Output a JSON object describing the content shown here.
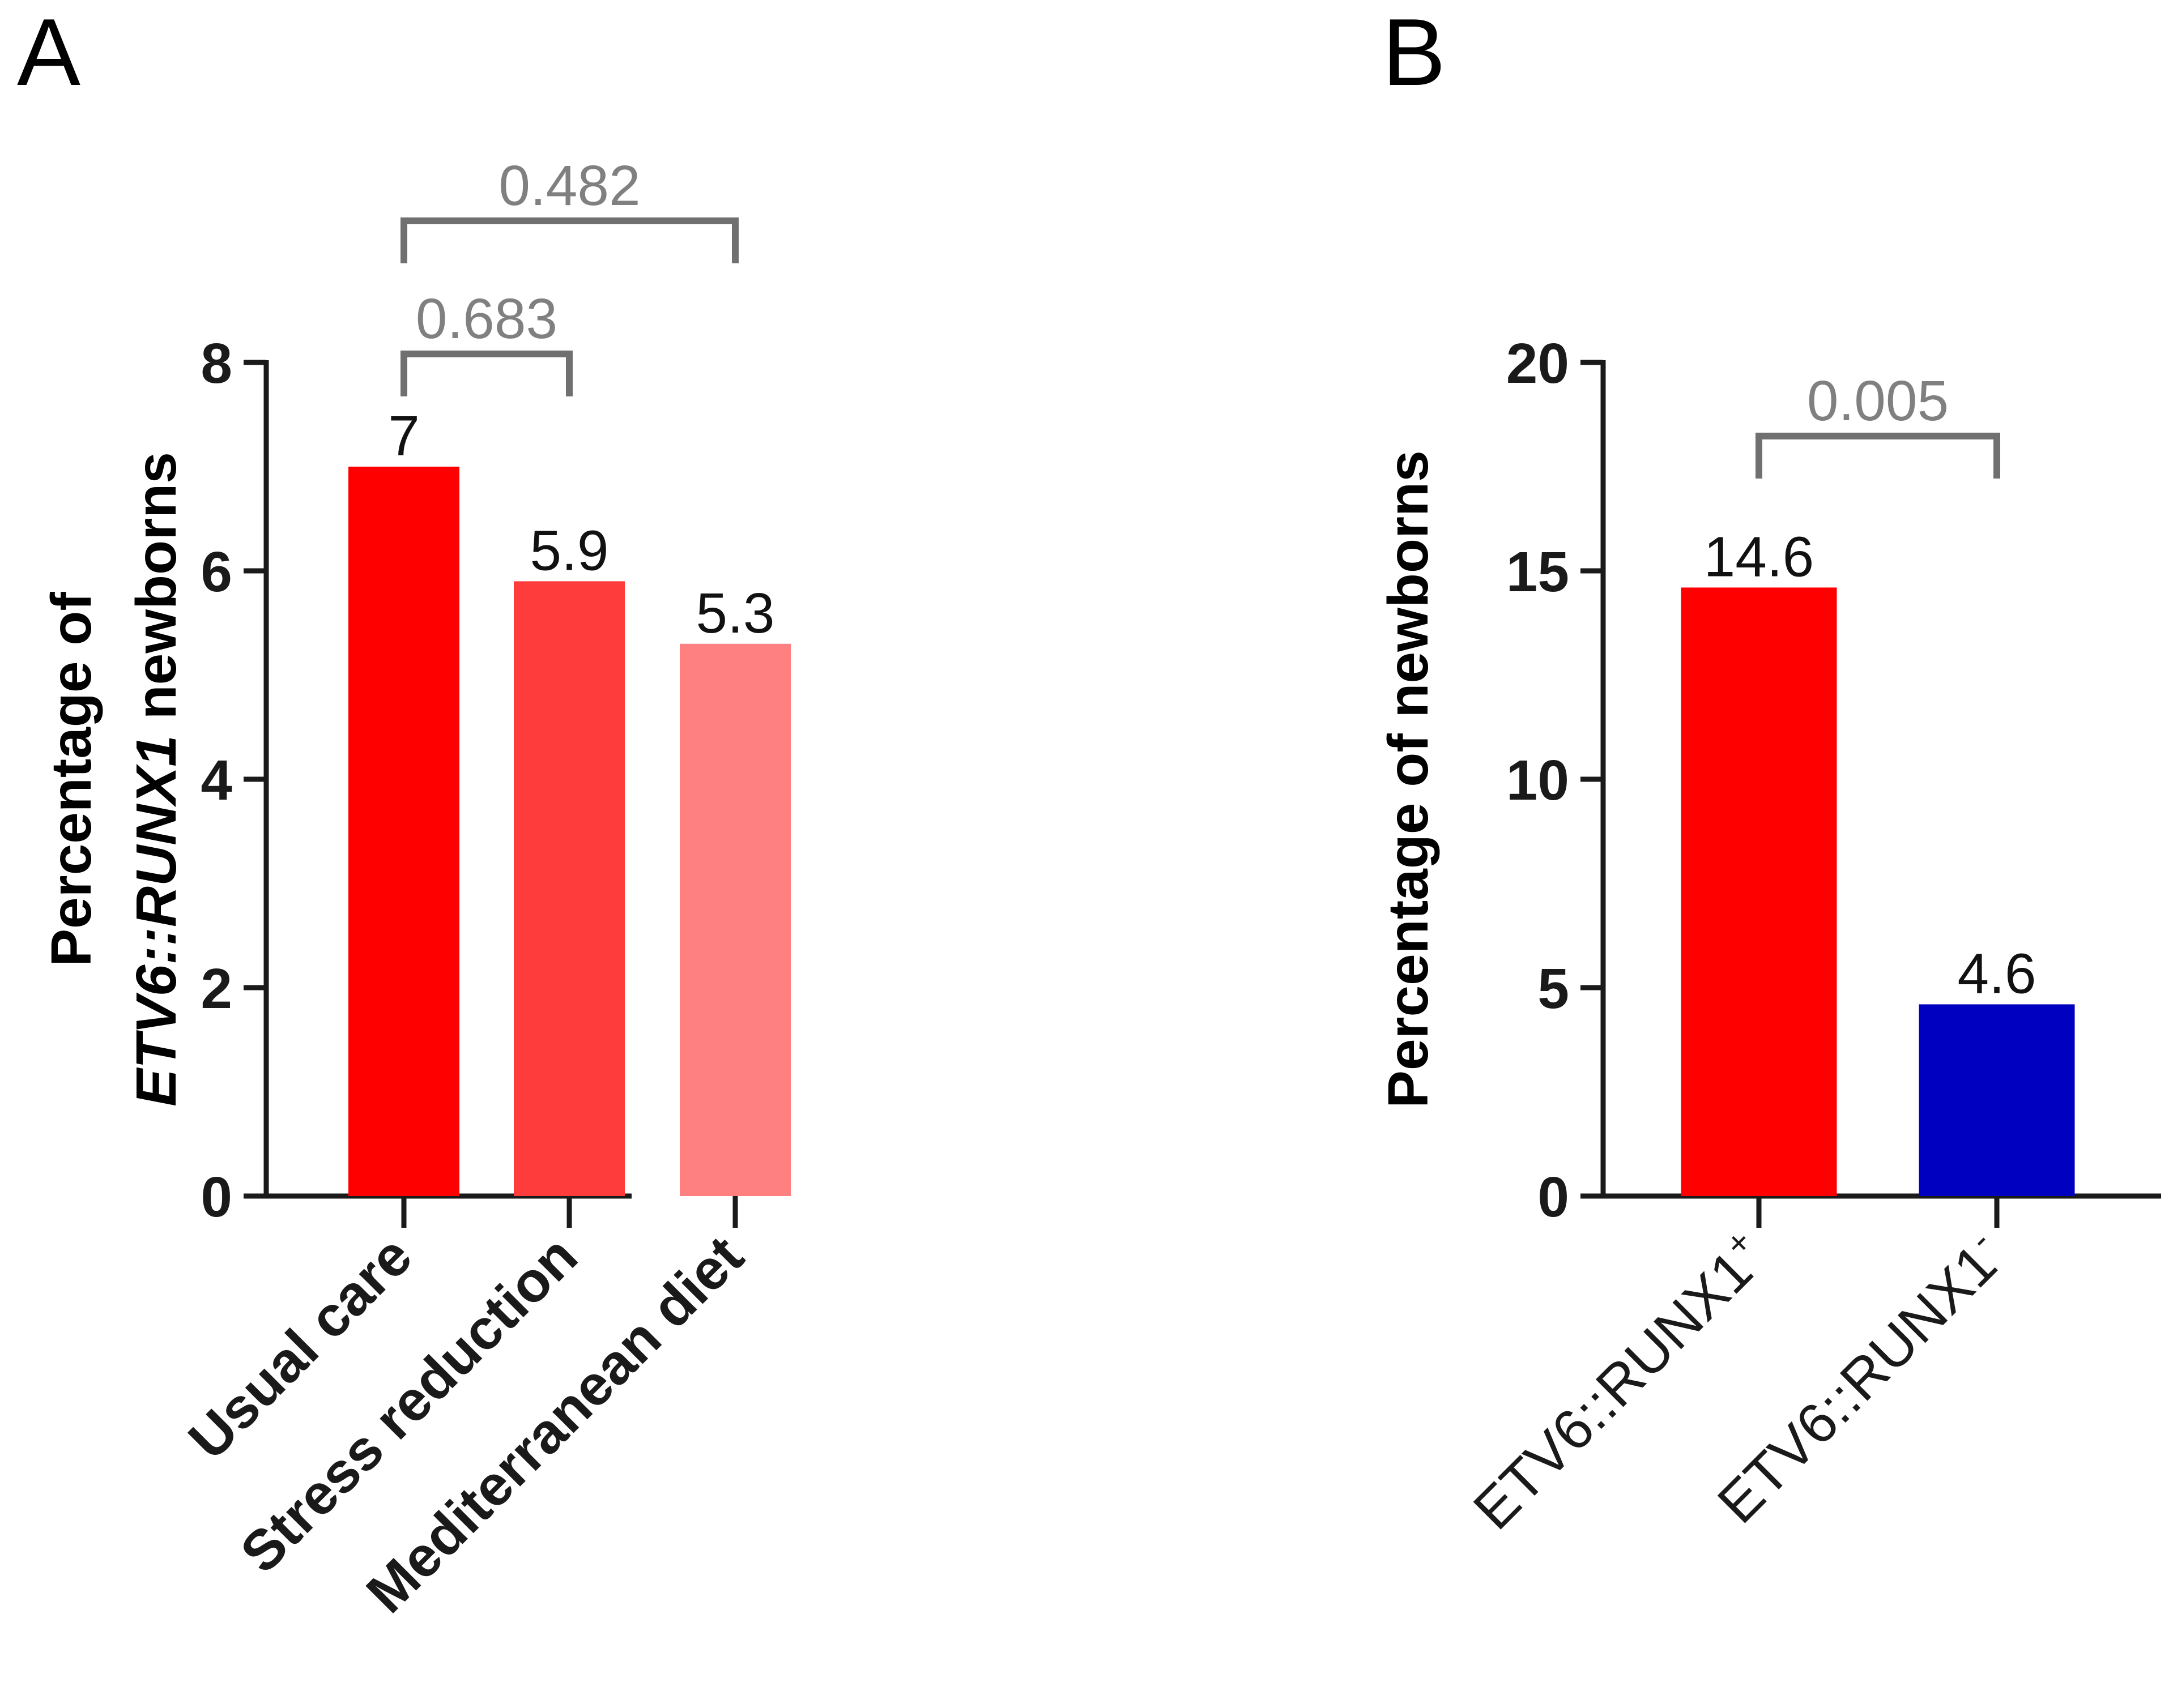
{
  "chart_data": [
    {
      "panel_label": "A",
      "type": "bar",
      "categories": [
        "Usual care",
        "Stress reduction",
        "Mediterranean diet"
      ],
      "values": [
        7,
        5.9,
        5.3
      ],
      "value_labels": [
        "7",
        "5.9",
        "5.3"
      ],
      "bar_colors": [
        "#ff0000",
        "#ff3c3c",
        "#ff8080"
      ],
      "ylabel_line1": "Percentage of",
      "ylabel_italic": "ETV6::RUNX1",
      "ylabel_rest": " newborns",
      "ylim": [
        0,
        8
      ],
      "yticks": [
        0,
        2,
        4,
        6,
        8
      ],
      "grid": false,
      "comparisons": [
        {
          "from": 0,
          "to": 1,
          "label": "0.683"
        },
        {
          "from": 0,
          "to": 2,
          "label": "0.482"
        }
      ]
    },
    {
      "panel_label": "B",
      "type": "bar",
      "categories": [
        "ETV6::RUNX1",
        "ETV6::RUNX1"
      ],
      "category_superscripts": [
        "+",
        "-"
      ],
      "values": [
        14.6,
        4.6
      ],
      "value_labels": [
        "14.6",
        "4.6"
      ],
      "bar_colors": [
        "#ff0000",
        "#0000c0"
      ],
      "ylabel": "Percentage of newborns",
      "ylim": [
        0,
        20
      ],
      "yticks": [
        0,
        5,
        10,
        15,
        20
      ],
      "grid": false,
      "comparisons": [
        {
          "from": 0,
          "to": 1,
          "label": "0.005"
        }
      ]
    }
  ],
  "colors": {
    "axis": "#1a1a1a",
    "comparison": "#707070"
  }
}
